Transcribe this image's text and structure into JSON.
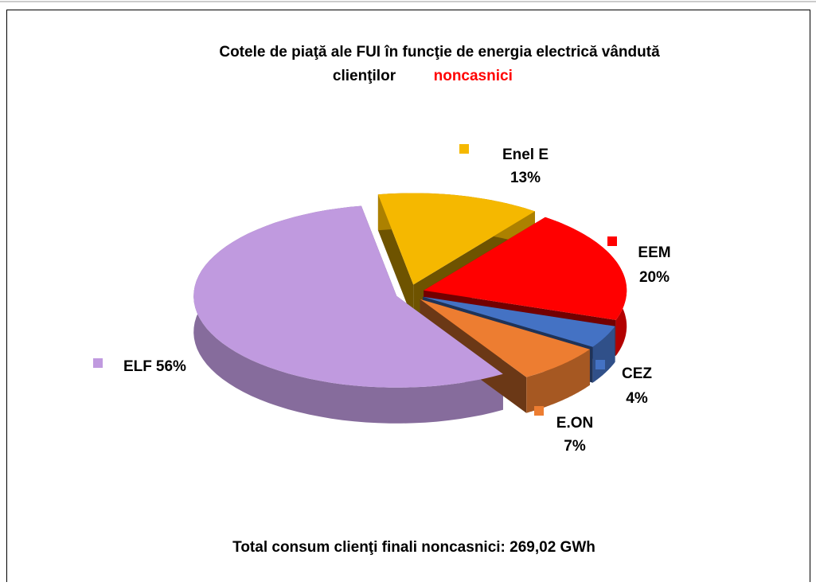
{
  "chart_data": {
    "type": "pie",
    "title": "Cotele de piaţă ale FUI în funcţie de energia electrică vândută clienţilor",
    "title_highlight": "noncasnici",
    "categories": [
      "Enel E",
      "EEM",
      "CEZ",
      "E.ON",
      "ELF"
    ],
    "values": [
      13,
      20,
      4,
      7,
      56
    ],
    "value_labels": [
      "13%",
      "20%",
      "4%",
      "7%",
      "56%"
    ],
    "colors": [
      "#f5b800",
      "#ff0000",
      "#4472c4",
      "#ed7d31",
      "#c09adf"
    ],
    "annotation": "Total consum clienţi finali noncasnici: 269,02 GWh"
  }
}
